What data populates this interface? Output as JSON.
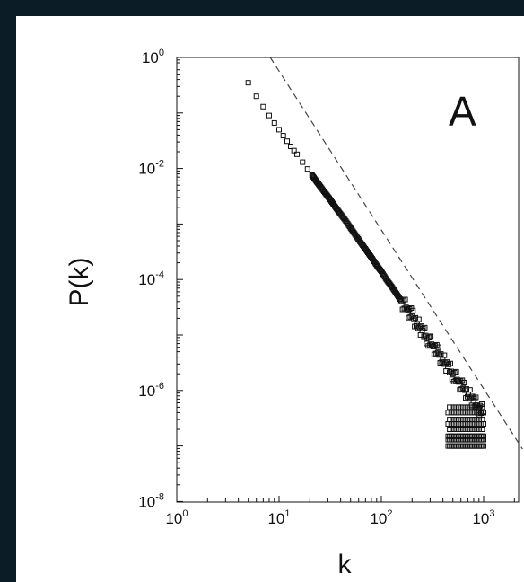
{
  "page": {
    "background_color": "#0c1c26",
    "figure_background": "#ffffff"
  },
  "chart_data": {
    "type": "scatter",
    "panel_label": "A",
    "xlabel": "k",
    "ylabel": "P(k)",
    "xscale": "log",
    "yscale": "log",
    "xlim": [
      1,
      3000
    ],
    "ylim": [
      1e-08,
      1
    ],
    "grid": false,
    "x_ticks": [
      {
        "value": 1,
        "base": "10",
        "exp": "0"
      },
      {
        "value": 10,
        "base": "10",
        "exp": "1"
      },
      {
        "value": 100,
        "base": "10",
        "exp": "2"
      },
      {
        "value": 1000,
        "base": "10",
        "exp": "3"
      }
    ],
    "y_ticks": [
      {
        "value": 1,
        "base": "10",
        "exp": "0"
      },
      {
        "value": 0.01,
        "base": "10",
        "exp": "-2"
      },
      {
        "value": 0.0001,
        "base": "10",
        "exp": "-4"
      },
      {
        "value": 1e-06,
        "base": "10",
        "exp": "-6"
      },
      {
        "value": 1e-08,
        "base": "10",
        "exp": "-8"
      }
    ],
    "series": [
      {
        "marker": "open-square",
        "color": "#111111",
        "points": [
          [
            5,
            0.35
          ],
          [
            6,
            0.2
          ],
          [
            7,
            0.13
          ],
          [
            8,
            0.09
          ],
          [
            9,
            0.066
          ],
          [
            10,
            0.05
          ],
          [
            11,
            0.039
          ],
          [
            12,
            0.031
          ],
          [
            13,
            0.025
          ],
          [
            14,
            0.021
          ],
          [
            15,
            0.018
          ],
          [
            17,
            0.013
          ],
          [
            19,
            0.0098
          ],
          [
            21,
            0.0076
          ],
          [
            23,
            0.006
          ],
          [
            25,
            0.0049
          ],
          [
            28,
            0.0037
          ],
          [
            31,
            0.0029
          ],
          [
            35,
            0.0021
          ],
          [
            39,
            0.0016
          ],
          [
            44,
            0.0012
          ],
          [
            50,
            0.00085
          ],
          [
            56,
            0.00063
          ],
          [
            63,
            0.00046
          ],
          [
            71,
            0.00034
          ],
          [
            80,
            0.00025
          ],
          [
            90,
            0.00018
          ],
          [
            100,
            0.00014
          ],
          [
            112,
            0.0001
          ],
          [
            126,
            7.5e-05
          ],
          [
            141,
            5.5e-05
          ],
          [
            158,
            4e-05
          ],
          [
            178,
            3e-05
          ],
          [
            200,
            2.2e-05
          ],
          [
            224,
            1.6e-05
          ],
          [
            251,
            1.2e-05
          ],
          [
            282,
            8.8e-06
          ],
          [
            316,
            6.5e-06
          ],
          [
            355,
            4.8e-06
          ],
          [
            398,
            3.6e-06
          ],
          [
            447,
            2.7e-06
          ],
          [
            501,
            2e-06
          ],
          [
            562,
            1.5e-06
          ],
          [
            631,
            1.1e-06
          ],
          [
            708,
            8.5e-07
          ],
          [
            794,
            6.5e-07
          ],
          [
            891,
            5e-07
          ],
          [
            1000,
            4e-07
          ]
        ],
        "tail": {
          "k_range": [
            450,
            1000
          ],
          "p_levels": [
            1e-07,
            1.3e-07,
            1.5e-07,
            2e-07,
            2.5e-07,
            3e-07,
            4e-07,
            5e-07
          ]
        }
      }
    ],
    "reference_line": {
      "style": "dashed",
      "color": "#444444",
      "slope": -3,
      "points": [
        [
          8.2,
          1
        ],
        [
          2400,
          8.8e-08
        ]
      ]
    }
  }
}
